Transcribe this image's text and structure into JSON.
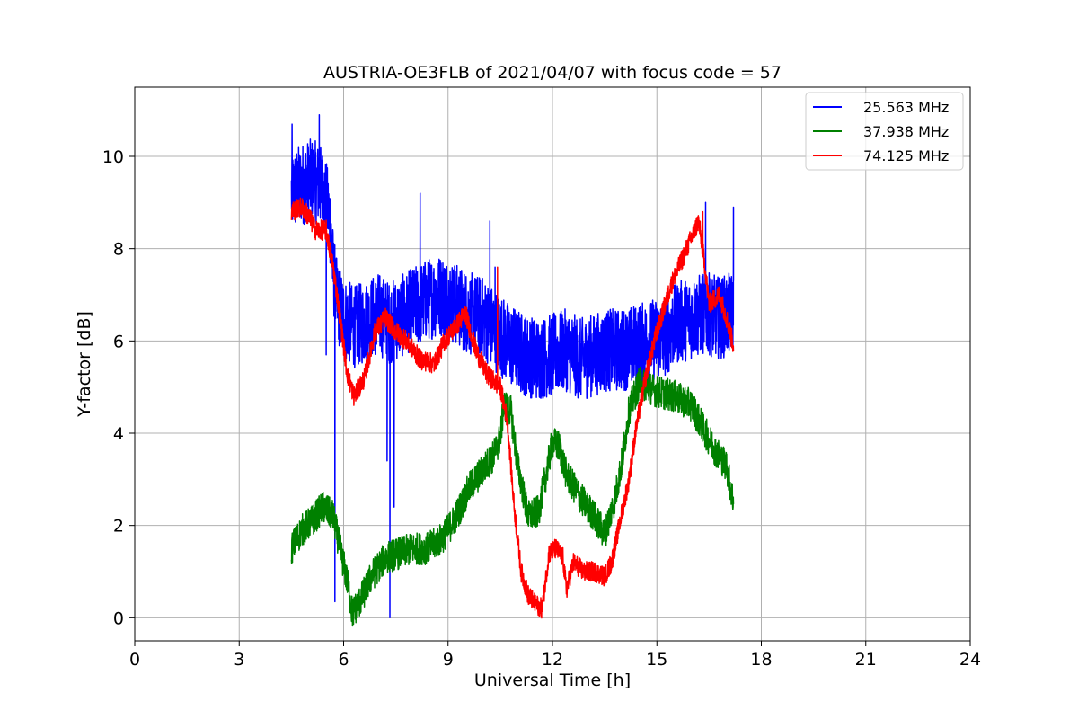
{
  "chart_data": {
    "type": "line",
    "title": "AUSTRIA-OE3FLB of 2021/04/07 with focus code = 57",
    "xlabel": "Universal Time [h]",
    "ylabel": "Y-factor [dB]",
    "xlim": [
      0,
      24
    ],
    "ylim": [
      -0.5,
      11.5
    ],
    "xticks": [
      0,
      3,
      6,
      9,
      12,
      15,
      18,
      21,
      24
    ],
    "yticks": [
      0,
      2,
      4,
      6,
      8,
      10
    ],
    "grid": true,
    "legend_position": "top-right",
    "series": [
      {
        "name": "25.563 MHz",
        "color": "#0000ff",
        "x": [
          4.5,
          4.8,
          5.1,
          5.4,
          5.6,
          5.7,
          5.8,
          6.0,
          6.3,
          6.6,
          7.0,
          7.3,
          7.6,
          8.0,
          8.4,
          8.8,
          9.2,
          9.6,
          10.0,
          10.4,
          10.8,
          11.2,
          11.6,
          12.0,
          12.4,
          12.8,
          13.2,
          13.6,
          14.0,
          14.4,
          14.8,
          15.2,
          15.6,
          16.0,
          16.4,
          16.8,
          17.2
        ],
        "y": [
          9.2,
          9.4,
          9.5,
          9.3,
          8.7,
          7.5,
          6.9,
          6.5,
          6.3,
          6.4,
          6.6,
          6.4,
          6.5,
          6.7,
          6.9,
          7.0,
          6.8,
          6.6,
          6.5,
          6.2,
          5.9,
          5.7,
          5.6,
          5.7,
          5.8,
          5.6,
          5.7,
          5.8,
          5.8,
          5.9,
          6.0,
          6.1,
          6.4,
          6.5,
          6.6,
          6.5,
          6.6
        ],
        "spread": 0.9,
        "spikes": [
          [
            4.52,
            10.7
          ],
          [
            5.3,
            10.9
          ],
          [
            5.5,
            5.7
          ],
          [
            5.75,
            0.35
          ],
          [
            7.25,
            3.4
          ],
          [
            7.33,
            0.0
          ],
          [
            7.45,
            2.4
          ],
          [
            8.2,
            9.2
          ],
          [
            10.2,
            8.6
          ],
          [
            10.35,
            7.6
          ],
          [
            16.4,
            9.0
          ],
          [
            17.2,
            8.9
          ]
        ]
      },
      {
        "name": "37.938 MHz",
        "color": "#008000",
        "x": [
          4.5,
          4.8,
          5.1,
          5.4,
          5.7,
          5.9,
          6.1,
          6.25,
          6.5,
          6.8,
          7.2,
          7.6,
          8.0,
          8.4,
          8.8,
          9.0,
          9.3,
          9.6,
          10.0,
          10.3,
          10.5,
          10.6,
          10.8,
          11.0,
          11.3,
          11.6,
          12.0,
          12.2,
          12.4,
          12.8,
          13.2,
          13.5,
          13.8,
          14.0,
          14.2,
          14.5,
          15.0,
          15.5,
          16.0,
          16.4,
          16.7,
          17.0,
          17.2
        ],
        "y": [
          1.5,
          1.9,
          2.1,
          2.4,
          2.2,
          1.5,
          0.8,
          0.1,
          0.4,
          0.9,
          1.3,
          1.4,
          1.5,
          1.5,
          1.7,
          1.9,
          2.3,
          2.8,
          3.2,
          3.5,
          3.9,
          4.6,
          4.5,
          3.3,
          2.2,
          2.3,
          3.8,
          3.7,
          3.1,
          2.6,
          2.2,
          1.8,
          2.6,
          3.4,
          4.5,
          5.1,
          4.9,
          4.8,
          4.6,
          4.0,
          3.6,
          3.3,
          2.5
        ],
        "spread": 0.35
      },
      {
        "name": "74.125 MHz",
        "color": "#ff0000",
        "x": [
          4.5,
          4.8,
          5.0,
          5.2,
          5.5,
          5.7,
          5.9,
          6.1,
          6.3,
          6.6,
          6.9,
          7.2,
          7.5,
          7.8,
          8.2,
          8.6,
          8.9,
          9.2,
          9.5,
          9.8,
          10.1,
          10.35,
          10.5,
          10.7,
          10.9,
          11.1,
          11.3,
          11.5,
          11.7,
          11.9,
          12.1,
          12.3,
          12.4,
          12.6,
          12.9,
          13.2,
          13.5,
          13.7,
          14.0,
          14.2,
          14.4,
          14.7,
          15.0,
          15.4,
          15.8,
          16.2,
          16.35,
          16.5,
          16.8,
          17.0,
          17.2
        ],
        "y": [
          8.8,
          8.9,
          8.7,
          8.4,
          8.4,
          7.6,
          6.5,
          5.3,
          4.8,
          5.2,
          6.2,
          6.5,
          6.2,
          6.0,
          5.6,
          5.5,
          6.0,
          6.3,
          6.6,
          5.8,
          5.3,
          5.1,
          5.0,
          4.3,
          2.4,
          1.0,
          0.5,
          0.3,
          0.2,
          1.4,
          1.5,
          1.3,
          0.6,
          1.2,
          1.0,
          1.0,
          0.9,
          1.2,
          2.3,
          3.0,
          4.1,
          5.3,
          6.2,
          7.2,
          7.9,
          8.6,
          7.8,
          6.8,
          7.0,
          6.5,
          5.9
        ],
        "spread": 0.22,
        "spikes": [
          [
            10.42,
            7.6
          ],
          [
            10.5,
            5.2
          ],
          [
            16.32,
            8.8
          ]
        ]
      }
    ]
  }
}
